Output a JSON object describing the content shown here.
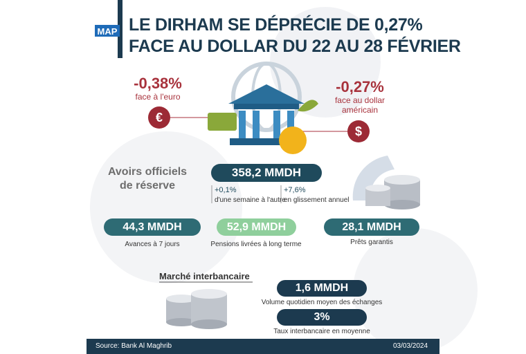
{
  "header": {
    "logo": "MAP",
    "title": [
      "LE DIRHAM SE DÉPRÉCIE DE 0,27%",
      "FACE AU DOLLAR DU 22 AU 28 FÉVRIER"
    ]
  },
  "euro": {
    "change": "-0,38%",
    "label": "face à l'euro"
  },
  "dollar": {
    "change": "-0,27%",
    "label": [
      "face au dollar",
      "américain"
    ]
  },
  "reserves": {
    "label": [
      "Avoirs officiels",
      "de réserve"
    ],
    "value": "358,2 MMDH",
    "weekly": {
      "change": "+0,1%",
      "label": "d'une semaine à l'autre"
    },
    "annual": {
      "change": "+7,6%",
      "label": "en glissement annuel"
    }
  },
  "operations": [
    {
      "value": "44,3 MMDH",
      "label": "Avances à 7 jours"
    },
    {
      "value": "52,9 MMDH",
      "label": "Pensions livrées à long terme"
    },
    {
      "value": "28,1 MMDH",
      "label": "Prêts garantis"
    }
  ],
  "interbank": {
    "title": "Marché interbancaire",
    "items": [
      {
        "value": "1,6 MMDH",
        "label": "Volume quotidien moyen des échanges"
      },
      {
        "value": "3%",
        "label": "Taux interbancaire en moyenne"
      }
    ]
  },
  "footer": {
    "source": "Source: Bank Al Maghrib",
    "date": "03/03/2024"
  }
}
